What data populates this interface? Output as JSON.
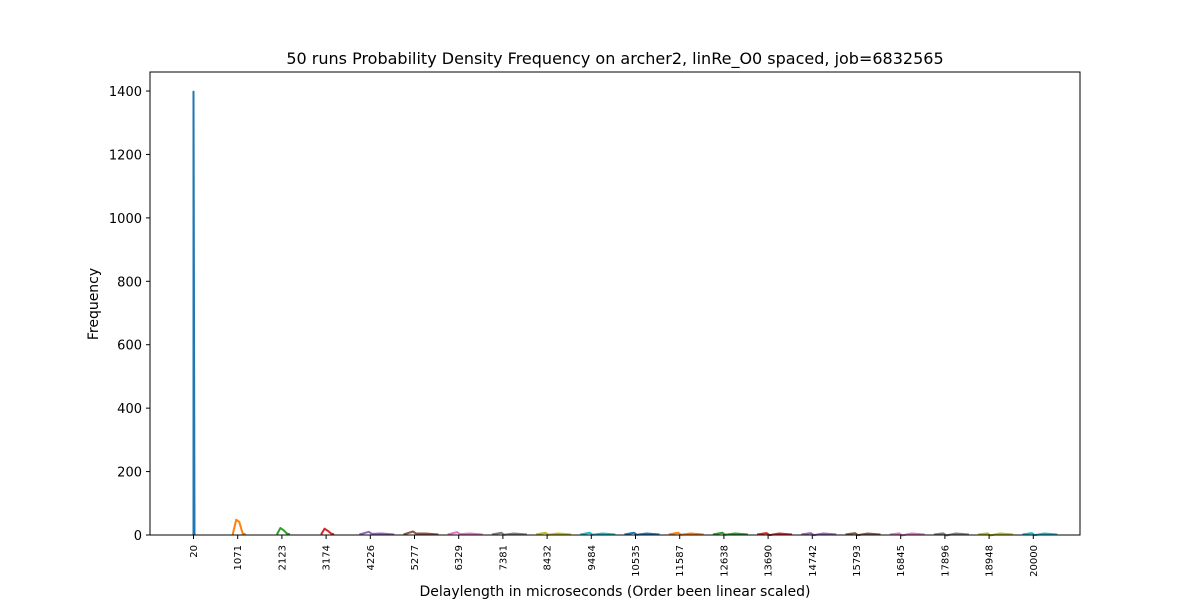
{
  "chart_data": {
    "type": "line",
    "title": "50 runs Probability Density Frequency on archer2, linRe_O0 spaced, job=6832565",
    "xlabel": "Delaylength in microseconds (Order been linear scaled)",
    "ylabel": "Frequency",
    "ylim": [
      0,
      1460
    ],
    "yticks": [
      0,
      200,
      400,
      600,
      800,
      1000,
      1200,
      1400
    ],
    "grid": false,
    "categories": [
      "20",
      "1071",
      "2123",
      "3174",
      "4226",
      "5277",
      "6329",
      "7381",
      "8432",
      "9484",
      "10535",
      "11587",
      "12638",
      "13690",
      "14742",
      "15793",
      "16845",
      "17896",
      "18948",
      "20000"
    ],
    "series": [
      {
        "category": "20",
        "peak": 1398,
        "color": "#1f77b4"
      },
      {
        "category": "1071",
        "peak": 48,
        "color": "#ff7f0e"
      },
      {
        "category": "2123",
        "peak": 22,
        "color": "#2ca02c"
      },
      {
        "category": "3174",
        "peak": 20,
        "color": "#d62728"
      },
      {
        "category": "4226",
        "peak": 10,
        "color": "#9467bd"
      },
      {
        "category": "5277",
        "peak": 11,
        "color": "#8c564b"
      },
      {
        "category": "6329",
        "peak": 9,
        "color": "#e377c2"
      },
      {
        "category": "7381",
        "peak": 7,
        "color": "#7f7f7f"
      },
      {
        "category": "8432",
        "peak": 7,
        "color": "#bcbd22"
      },
      {
        "category": "9484",
        "peak": 7,
        "color": "#17becf"
      },
      {
        "category": "10535",
        "peak": 7,
        "color": "#1f77b4"
      },
      {
        "category": "11587",
        "peak": 7,
        "color": "#ff7f0e"
      },
      {
        "category": "12638",
        "peak": 7,
        "color": "#2ca02c"
      },
      {
        "category": "13690",
        "peak": 6,
        "color": "#d62728"
      },
      {
        "category": "14742",
        "peak": 6,
        "color": "#9467bd"
      },
      {
        "category": "15793",
        "peak": 6,
        "color": "#8c564b"
      },
      {
        "category": "16845",
        "peak": 5,
        "color": "#e377c2"
      },
      {
        "category": "17896",
        "peak": 5,
        "color": "#7f7f7f"
      },
      {
        "category": "18948",
        "peak": 5,
        "color": "#bcbd22"
      },
      {
        "category": "20000",
        "peak": 6,
        "color": "#17becf"
      }
    ]
  }
}
